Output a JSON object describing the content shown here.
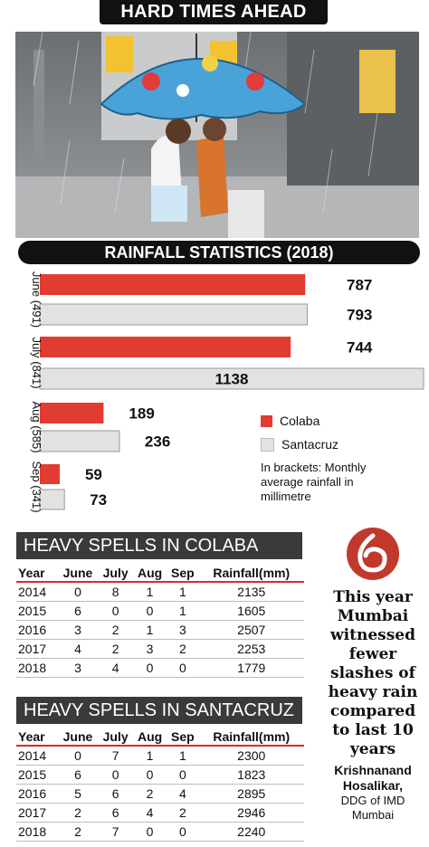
{
  "header": {
    "title": "HARD TIMES AHEAD"
  },
  "stats_title": "RAINFALL STATISTICS (2018)",
  "colors": {
    "colaba": "#e03c31",
    "santacruz": "#e2e2e2",
    "dark": "#111111",
    "table_head": "#3a3a3a",
    "logo": "#c0392b"
  },
  "chart_data": {
    "type": "bar",
    "orientation": "horizontal",
    "title": "RAINFALL STATISTICS (2018)",
    "categories": [
      "June (491)",
      "July (841)",
      "Aug (585)",
      "Sep (341)"
    ],
    "series": [
      {
        "name": "Colaba",
        "values": [
          787,
          744,
          189,
          59
        ]
      },
      {
        "name": "Santacruz",
        "values": [
          793,
          1138,
          236,
          73
        ]
      }
    ],
    "legend_position": "right",
    "grid": false
  },
  "legend": {
    "colaba": "Colaba",
    "santacruz": "Santacruz"
  },
  "note": "In brackets: Monthly average rainfall in millimetre",
  "colaba_table": {
    "title": "HEAVY SPELLS IN COLABA",
    "headers": [
      "Year",
      "June",
      "July",
      "Aug",
      "Sep",
      "Rainfall(mm)"
    ],
    "rows": [
      [
        "2014",
        "0",
        "8",
        "1",
        "1",
        "2135"
      ],
      [
        "2015",
        "6",
        "0",
        "0",
        "1",
        "1605"
      ],
      [
        "2016",
        "3",
        "2",
        "1",
        "3",
        "2507"
      ],
      [
        "2017",
        "4",
        "2",
        "3",
        "2",
        "2253"
      ],
      [
        "2018",
        "3",
        "4",
        "0",
        "0",
        "1779"
      ]
    ]
  },
  "santacruz_table": {
    "title": "HEAVY SPELLS IN SANTACRUZ",
    "headers": [
      "Year",
      "June",
      "July",
      "Aug",
      "Sep",
      "Rainfall(mm)"
    ],
    "rows": [
      [
        "2014",
        "0",
        "7",
        "1",
        "1",
        "2300"
      ],
      [
        "2015",
        "6",
        "0",
        "0",
        "0",
        "1823"
      ],
      [
        "2016",
        "5",
        "6",
        "2",
        "4",
        "2895"
      ],
      [
        "2017",
        "2",
        "6",
        "4",
        "2",
        "2946"
      ],
      [
        "2018",
        "2",
        "7",
        "0",
        "0",
        "2240"
      ]
    ]
  },
  "quote": {
    "text": "This year Mumbai witnessed fewer slashes of heavy rain compared to last 10 years",
    "name": "Krishnanand Hosalikar,",
    "role": "DDG of IMD Mumbai"
  }
}
